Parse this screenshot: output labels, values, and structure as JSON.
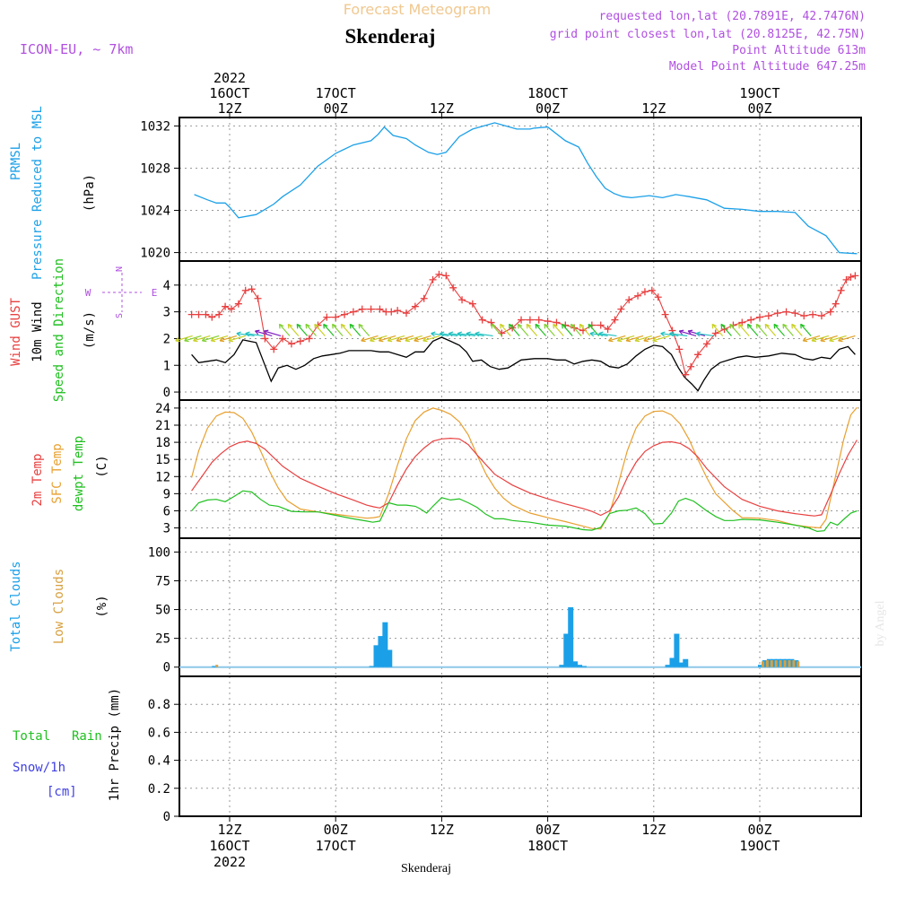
{
  "header": {
    "title": "Forecast Meteogram",
    "location": "Skenderaj",
    "model": "ICON-EU, ~ 7km",
    "requested": "requested lon,lat (20.7891E, 42.7476N)",
    "closest": "grid point closest lon,lat (20.8125E, 42.75N)",
    "point_alt": "Point Altitude 613m",
    "model_alt": "Model Point Altitude 647.25m",
    "footer": "Skenderaj",
    "credit": "by Angel"
  },
  "time_axis": {
    "top_labels": [
      {
        "l1": "2022",
        "l2": "16OCT",
        "l3": "12Z",
        "hour": 0
      },
      {
        "l1": "",
        "l2": "17OCT",
        "l3": "00Z",
        "hour": 12
      },
      {
        "l1": "",
        "l2": "",
        "l3": "12Z",
        "hour": 24
      },
      {
        "l1": "",
        "l2": "18OCT",
        "l3": "00Z",
        "hour": 36
      },
      {
        "l1": "",
        "l2": "",
        "l3": "12Z",
        "hour": 48
      },
      {
        "l1": "",
        "l2": "19OCT",
        "l3": "00Z",
        "hour": 60
      }
    ],
    "bottom_labels": [
      {
        "l1": "12Z",
        "l2": "16OCT",
        "l3": "2022",
        "hour": 0
      },
      {
        "l1": "00Z",
        "l2": "17OCT",
        "l3": "",
        "hour": 12
      },
      {
        "l1": "12Z",
        "l2": "",
        "l3": "",
        "hour": 24
      },
      {
        "l1": "00Z",
        "l2": "18OCT",
        "l3": "",
        "hour": 36
      },
      {
        "l1": "12Z",
        "l2": "",
        "l3": "",
        "hour": 48
      },
      {
        "l1": "00Z",
        "l2": "19OCT",
        "l3": "",
        "hour": 60
      }
    ]
  },
  "labels": {
    "p1_a": "PRMSL",
    "p1_b": "Pressure Reduced to MSL",
    "p1_unit": "(hPa)",
    "p2_a": "Wind GUST",
    "p2_b": "10m Wind",
    "p2_c": "Speed and Direction",
    "p2_unit": "(m/s)",
    "compass_n": "N",
    "compass_s": "S",
    "compass_w": "W",
    "compass_e": "E",
    "p3_a": "2m Temp",
    "p3_b": "SFC Temp",
    "p3_c": "dewpt Temp",
    "p3_unit": "(C)",
    "p4_a": "Total Clouds",
    "p4_b": "Low Clouds",
    "p4_unit": "(%)",
    "p5_a": "Total",
    "p5_b": "Rain",
    "p5_c": "Snow/1h",
    "p5_d": "[cm]",
    "p5_unit": "1hr Precip (mm)"
  },
  "colors": {
    "pressure": "#1ba0e8",
    "gust": "#e84040",
    "wind": "#000000",
    "temp2m": "#e84040",
    "sfc": "#e8a030",
    "dewpt": "#20c020",
    "total_clouds": "#1ba0e8",
    "low_clouds": "#d8a040",
    "model": "#b050e0",
    "rain": "#20c020",
    "snow": "#4040e0"
  },
  "chart_data": [
    {
      "type": "line",
      "title": "PRMSL Pressure Reduced to MSL",
      "ylabel": "(hPa)",
      "ylim": [
        1019.2,
        1032.8
      ],
      "yticks": [
        1020,
        1024,
        1028,
        1032
      ],
      "x_hours": [
        -4,
        -2.5,
        -1.5,
        -0.5,
        0,
        1,
        3,
        4,
        5,
        6,
        8,
        10,
        12,
        14,
        16,
        16.8,
        17.5,
        18.5,
        20,
        21,
        22.5,
        23.5,
        24.5,
        26,
        27.5,
        30,
        32.5,
        34,
        34.5,
        36,
        38,
        39.5,
        40.5,
        41.5,
        42.5,
        43.5,
        44.5,
        45.5,
        47.5,
        49,
        50.5,
        52,
        54,
        56,
        58,
        60,
        62,
        64,
        65.5,
        67.5,
        69,
        71
      ],
      "values": [
        1025.5,
        1025.0,
        1024.7,
        1024.7,
        1024.3,
        1023.3,
        1023.6,
        1024.1,
        1024.6,
        1025.3,
        1026.4,
        1028.2,
        1029.4,
        1030.2,
        1030.6,
        1031.2,
        1031.9,
        1031.1,
        1030.8,
        1030.2,
        1029.5,
        1029.3,
        1029.5,
        1031.0,
        1031.7,
        1032.3,
        1031.7,
        1031.7,
        1031.8,
        1031.9,
        1030.6,
        1030.0,
        1028.5,
        1027.2,
        1026.1,
        1025.6,
        1025.3,
        1025.2,
        1025.4,
        1025.2,
        1025.5,
        1025.3,
        1025.0,
        1024.2,
        1024.1,
        1023.9,
        1023.9,
        1023.8,
        1022.5,
        1021.6,
        1020.0,
        1019.9
      ]
    },
    {
      "type": "line",
      "title": "Wind GUST / 10m Wind",
      "ylabel": "(m/s)",
      "ylim": [
        -0.3,
        4.9
      ],
      "yticks": [
        0,
        1,
        2,
        3,
        4
      ],
      "series": [
        {
          "name": "Wind GUST",
          "x_hours": [
            -4.3,
            -3.5,
            -2.7,
            -2,
            -1.2,
            -0.5,
            0.2,
            1,
            1.8,
            2.5,
            3.2,
            4,
            5,
            6,
            7,
            8,
            9,
            10,
            11,
            12,
            13,
            14,
            15,
            16,
            17,
            17.7,
            18.3,
            19,
            20,
            21,
            22,
            23,
            23.7,
            24.5,
            25.3,
            26.3,
            27.5,
            28.6,
            29.6,
            30.8,
            32,
            33,
            34,
            35,
            36,
            37,
            38,
            39,
            40,
            41,
            42,
            42.8,
            43.6,
            44.3,
            45.2,
            46.2,
            47,
            47.8,
            48.5,
            49.3,
            50.1,
            50.9,
            51.6,
            52.2,
            53,
            54,
            55,
            56,
            57,
            58,
            59,
            60,
            61,
            62,
            63,
            64,
            65,
            66,
            67,
            68,
            68.6,
            69.2,
            69.8,
            70.3,
            70.8
          ],
          "values": [
            2.9,
            2.9,
            2.9,
            2.8,
            2.9,
            3.2,
            3.1,
            3.3,
            3.8,
            3.85,
            3.5,
            2.0,
            1.6,
            2.0,
            1.8,
            1.9,
            2.0,
            2.5,
            2.8,
            2.8,
            2.9,
            3.0,
            3.1,
            3.1,
            3.1,
            3.0,
            3.0,
            3.05,
            2.95,
            3.2,
            3.5,
            4.2,
            4.4,
            4.35,
            3.9,
            3.45,
            3.3,
            2.7,
            2.6,
            2.2,
            2.4,
            2.7,
            2.7,
            2.7,
            2.65,
            2.6,
            2.5,
            2.4,
            2.3,
            2.5,
            2.5,
            2.35,
            2.7,
            3.1,
            3.45,
            3.6,
            3.75,
            3.8,
            3.55,
            2.9,
            2.3,
            1.6,
            0.65,
            0.95,
            1.4,
            1.8,
            2.2,
            2.35,
            2.5,
            2.6,
            2.7,
            2.8,
            2.85,
            2.95,
            3.0,
            2.95,
            2.85,
            2.9,
            2.85,
            3.0,
            3.3,
            3.8,
            4.2,
            4.3,
            4.35
          ]
        },
        {
          "name": "10m Wind",
          "x_hours": [
            -4.3,
            -3.5,
            -2.5,
            -1.5,
            -0.5,
            0.5,
            1.5,
            3,
            4,
            4.7,
            5.5,
            6.5,
            7.5,
            8.5,
            9.5,
            10.5,
            11.5,
            12.5,
            13.5,
            14.5,
            16,
            17,
            18,
            19,
            20,
            21,
            22,
            23,
            24,
            25,
            26,
            26.8,
            27.5,
            28.5,
            29.5,
            30.5,
            31.5,
            33,
            34.5,
            36,
            37,
            38,
            39,
            40,
            41,
            42,
            43,
            44,
            45,
            46,
            47,
            48,
            49,
            50,
            50.8,
            51.5,
            52.3,
            53,
            53.7,
            54.5,
            55.5,
            56.5,
            57.5,
            58.5,
            59.5,
            61,
            62.5,
            64,
            65,
            66,
            67,
            68,
            69,
            70,
            70.8
          ],
          "values": [
            1.4,
            1.1,
            1.15,
            1.2,
            1.1,
            1.4,
            1.95,
            1.85,
            1.0,
            0.4,
            0.9,
            1.0,
            0.85,
            1.0,
            1.25,
            1.35,
            1.4,
            1.45,
            1.55,
            1.55,
            1.55,
            1.5,
            1.5,
            1.4,
            1.3,
            1.5,
            1.5,
            1.9,
            2.05,
            1.9,
            1.75,
            1.5,
            1.15,
            1.2,
            0.95,
            0.85,
            0.9,
            1.2,
            1.25,
            1.25,
            1.2,
            1.2,
            1.05,
            1.15,
            1.2,
            1.15,
            0.95,
            0.9,
            1.05,
            1.35,
            1.6,
            1.75,
            1.7,
            1.4,
            0.9,
            0.55,
            0.3,
            0.05,
            0.45,
            0.85,
            1.1,
            1.2,
            1.3,
            1.35,
            1.3,
            1.35,
            1.45,
            1.4,
            1.25,
            1.2,
            1.3,
            1.25,
            1.6,
            1.7,
            1.4
          ]
        }
      ],
      "arrow_baseline_ms": 2.1
    },
    {
      "type": "line",
      "title": "2m Temp / SFC Temp / dewpt Temp",
      "ylabel": "(C)",
      "ylim": [
        1.2,
        25.4
      ],
      "yticks": [
        3,
        6,
        9,
        12,
        15,
        18,
        21,
        24
      ],
      "series": [
        {
          "name": "2m Temp",
          "x_hours": [
            -4.3,
            -3,
            -2,
            -1,
            0,
            1,
            2,
            3,
            4,
            5,
            6,
            8,
            10,
            12,
            14,
            15.5,
            16.3,
            17,
            18,
            19,
            20,
            21,
            22,
            23,
            24,
            25,
            26,
            27,
            28,
            30,
            32,
            34,
            36,
            38,
            40,
            41,
            42,
            43,
            44,
            45,
            46,
            47,
            48,
            49,
            50,
            51,
            52,
            53,
            54,
            56,
            58,
            60,
            62,
            64,
            65.5,
            66.2,
            67,
            68,
            69,
            70,
            71
          ],
          "values": [
            9.5,
            12.3,
            14.5,
            16.0,
            17.2,
            17.9,
            18.2,
            17.8,
            16.8,
            15.3,
            13.8,
            11.7,
            10.3,
            9.0,
            7.9,
            7.0,
            6.7,
            6.5,
            7.4,
            10.5,
            13.3,
            15.5,
            17.0,
            18.2,
            18.6,
            18.7,
            18.6,
            17.6,
            15.8,
            12.4,
            10.5,
            9.1,
            8.1,
            7.2,
            6.4,
            5.9,
            5.2,
            6.0,
            8.4,
            11.8,
            14.5,
            16.4,
            17.4,
            18.0,
            18.1,
            17.8,
            16.9,
            15.4,
            13.4,
            10.2,
            8.0,
            6.8,
            6.0,
            5.5,
            5.2,
            5.1,
            5.3,
            8.8,
            12.5,
            15.8,
            18.4
          ]
        },
        {
          "name": "SFC Temp",
          "x_hours": [
            -4.3,
            -3.5,
            -2.5,
            -1.5,
            -0.5,
            0.5,
            1.5,
            2.5,
            3.5,
            4.5,
            5.5,
            6.5,
            8,
            10,
            12,
            14,
            15.5,
            16.3,
            17,
            18,
            19,
            20,
            21,
            22,
            23,
            24,
            25,
            26,
            27,
            28,
            29,
            30,
            31,
            32,
            34,
            36,
            38,
            40,
            41,
            42,
            43,
            44,
            45,
            46,
            47,
            48,
            49,
            50,
            51,
            52,
            53,
            54,
            55,
            56,
            57,
            58,
            60,
            62,
            64,
            65.5,
            66,
            66.8,
            67.5,
            68.5,
            69.5,
            70.3,
            71
          ],
          "values": [
            11.8,
            16.5,
            20.5,
            22.6,
            23.3,
            23.2,
            22.2,
            19.8,
            16.5,
            13.0,
            10.0,
            7.8,
            6.3,
            5.8,
            5.4,
            5.0,
            4.7,
            4.8,
            5.0,
            9.0,
            14.0,
            18.6,
            21.8,
            23.3,
            24.0,
            23.6,
            22.9,
            21.6,
            19.3,
            15.8,
            12.5,
            10.0,
            8.2,
            7.0,
            5.6,
            4.8,
            4.1,
            3.3,
            2.9,
            2.8,
            5.5,
            10.8,
            16.5,
            20.5,
            22.6,
            23.4,
            23.5,
            22.8,
            21.2,
            18.5,
            15.0,
            11.8,
            9.0,
            7.5,
            6.0,
            4.8,
            4.7,
            4.3,
            3.5,
            3.2,
            3.1,
            3.0,
            4.5,
            11.5,
            18.5,
            22.8,
            24.1
          ]
        },
        {
          "name": "dewpt Temp",
          "x_hours": [
            -4.3,
            -3.5,
            -2.5,
            -1.5,
            -0.5,
            0.5,
            1.5,
            2.5,
            3.5,
            4.5,
            5.5,
            7,
            8.5,
            10,
            12,
            14,
            15.5,
            16.2,
            17,
            18,
            19,
            20,
            21,
            21.5,
            22.3,
            23,
            24,
            25,
            26,
            27,
            28,
            29,
            30,
            31,
            32,
            34,
            36,
            38,
            40,
            41,
            42,
            43,
            44,
            45,
            46,
            47,
            48,
            49,
            50,
            50.8,
            51.6,
            52.5,
            53.3,
            54,
            55,
            56,
            57,
            58,
            60,
            62,
            64,
            65.5,
            66.5,
            67.3,
            68,
            68.8,
            69.5,
            70.3,
            71
          ],
          "values": [
            6.0,
            7.4,
            7.9,
            8.0,
            7.6,
            8.5,
            9.5,
            9.3,
            8.0,
            7.0,
            6.8,
            5.9,
            5.8,
            5.8,
            5.2,
            4.6,
            4.2,
            4.0,
            4.2,
            7.4,
            7.0,
            7.0,
            6.8,
            6.4,
            5.6,
            6.8,
            8.3,
            7.9,
            8.1,
            7.4,
            6.6,
            5.4,
            4.6,
            4.6,
            4.3,
            4.0,
            3.5,
            3.3,
            2.7,
            2.6,
            3.1,
            5.5,
            6.0,
            6.1,
            6.5,
            5.5,
            3.7,
            3.8,
            5.6,
            7.7,
            8.2,
            7.7,
            6.8,
            6.0,
            5.0,
            4.3,
            4.3,
            4.5,
            4.4,
            4.0,
            3.5,
            3.0,
            2.4,
            2.5,
            4.0,
            3.5,
            4.5,
            5.6,
            6.0
          ]
        }
      ]
    },
    {
      "type": "bar",
      "title": "Total Clouds / Low Clouds",
      "ylabel": "(%)",
      "ylim": [
        -8,
        112
      ],
      "yticks": [
        0,
        25,
        50,
        75,
        100
      ],
      "series": [
        {
          "name": "Total Clouds",
          "x_hours": [
            -1.7,
            16.1,
            16.6,
            17.1,
            17.6,
            18.1,
            37.6,
            38.1,
            38.6,
            39.1,
            39.6,
            40.1,
            49.6,
            50.1,
            50.6,
            51.1,
            51.6,
            60.1,
            60.6,
            61.1,
            61.6,
            62.1,
            62.6,
            63.1,
            63.6,
            64.1
          ],
          "values": [
            1,
            1,
            19,
            27,
            39,
            15,
            2,
            29,
            52,
            5,
            2,
            1,
            2,
            8,
            29,
            4,
            7,
            2,
            6,
            7,
            7,
            7,
            7,
            7,
            7,
            6
          ]
        },
        {
          "name": "Low Clouds",
          "x_hours": [
            -1.45,
            60.35,
            60.85,
            61.35,
            61.85,
            62.35,
            62.85,
            63.35,
            63.85,
            64.35
          ],
          "values": [
            2,
            5,
            6,
            6,
            6,
            6,
            6,
            6,
            6,
            5
          ]
        }
      ]
    },
    {
      "type": "bar",
      "title": "Total Rain / Snow 1hr Precip",
      "ylabel": "1hr Precip (mm)",
      "ylim": [
        0,
        1
      ],
      "yticks": [
        0,
        0.2,
        0.4,
        0.6,
        0.8
      ],
      "series": [
        {
          "name": "Total Rain",
          "values": []
        },
        {
          "name": "Snow/1h",
          "values": []
        }
      ]
    }
  ]
}
